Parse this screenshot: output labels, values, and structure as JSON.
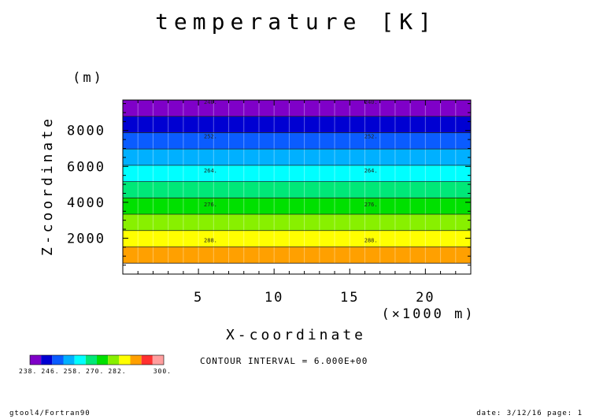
{
  "chart_data": {
    "type": "heatmap",
    "title": "temperature [K]",
    "xlabel": "X-coordinate",
    "xunit": "(×1000 m)",
    "ylabel": "Z-coordinate",
    "yunit": "(m)",
    "xlim": [
      0,
      23
    ],
    "ylim": [
      0,
      9700
    ],
    "xticks": [
      5,
      10,
      15,
      20
    ],
    "yticks": [
      2000,
      4000,
      6000,
      8000
    ],
    "levels": [
      238,
      244,
      250,
      256,
      262,
      268,
      274,
      280,
      286,
      292,
      298
    ],
    "colors": [
      "#7f00c8",
      "#0000d2",
      "#0a5cff",
      "#00b0ff",
      "#00ffff",
      "#00e878",
      "#00e000",
      "#88f000",
      "#ffff00",
      "#ffa000",
      "#ff3030",
      "#ff9e9e"
    ],
    "temperature_profile": [
      {
        "z": 0,
        "t": 302
      },
      {
        "z": 9700,
        "t": 238
      }
    ],
    "contour_labels": [
      {
        "value": "240.",
        "z": 9700
      },
      {
        "value": "252.",
        "z": 7700
      },
      {
        "value": "264.",
        "z": 5800
      },
      {
        "value": "276.",
        "z": 3900
      },
      {
        "value": "288.",
        "z": 1900
      }
    ],
    "contour_label_x": [
      5.8,
      16.4
    ],
    "colorbar": {
      "labels": [
        "238.",
        "246.",
        "258.",
        "270.",
        "282.",
        "300."
      ]
    },
    "contour_interval_text": "CONTOUR INTERVAL = 6.000E+00"
  },
  "footer": {
    "left": "gtool4/Fortran90",
    "right": "date: 3/12/16 page: 1"
  }
}
